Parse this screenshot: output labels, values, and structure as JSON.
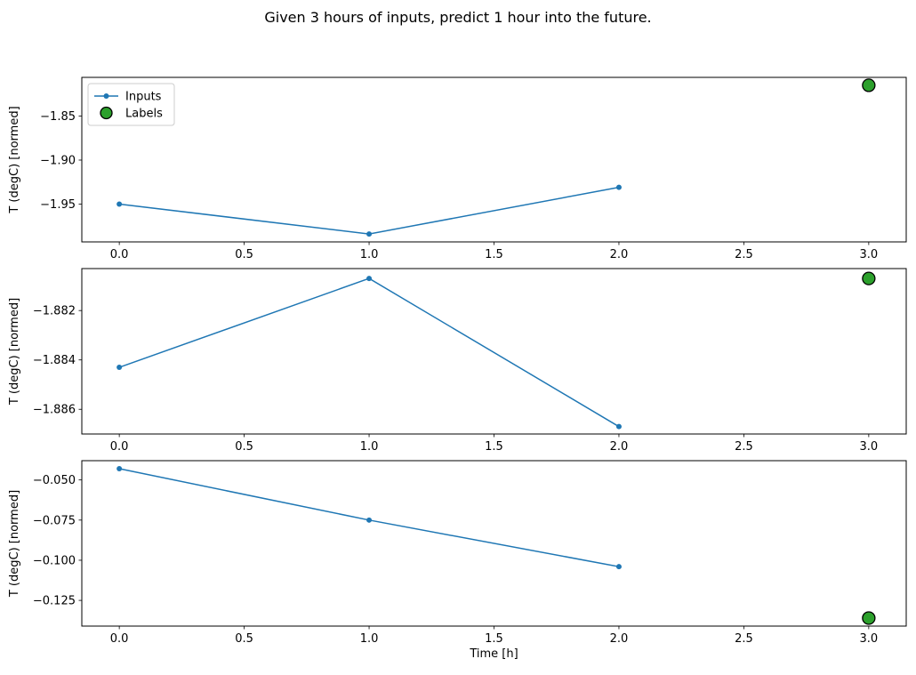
{
  "figure": {
    "title": "Given 3 hours of inputs, predict 1 hour into the future.",
    "background": "#ffffff",
    "text_color": "#000000"
  },
  "legend": {
    "entries": [
      "Inputs",
      "Labels"
    ],
    "position": "upper left",
    "border_color": "#cccccc"
  },
  "colors": {
    "inputs_line": "#1f77b4",
    "labels_fill": "#2ca02c",
    "labels_edge": "#000000",
    "axes": "#000000"
  },
  "chart_data": [
    {
      "type": "line",
      "title": "",
      "xlabel": "",
      "ylabel": "T (degC) [normed]",
      "xlim": [
        -0.15,
        3.15
      ],
      "ylim": [
        -1.993,
        -1.806
      ],
      "grid": false,
      "show_legend": true,
      "xticks": {
        "values": [
          0.0,
          0.5,
          1.0,
          1.5,
          2.0,
          2.5,
          3.0
        ],
        "labels": [
          "0.0",
          "0.5",
          "1.0",
          "1.5",
          "2.0",
          "2.5",
          "3.0"
        ]
      },
      "yticks": {
        "values": [
          -1.85,
          -1.9,
          -1.95
        ],
        "labels": [
          "−1.85",
          "−1.90",
          "−1.95"
        ]
      },
      "series": [
        {
          "name": "Inputs",
          "kind": "line",
          "marker": "dot",
          "color": "#1f77b4",
          "x": [
            0,
            1,
            2
          ],
          "y": [
            -1.95,
            -1.984,
            -1.931
          ]
        },
        {
          "name": "Labels",
          "kind": "scatter",
          "marker": "circle",
          "color": "#2ca02c",
          "edge": "#000000",
          "x": [
            3
          ],
          "y": [
            -1.815
          ]
        }
      ]
    },
    {
      "type": "line",
      "title": "",
      "xlabel": "",
      "ylabel": "T (degC) [normed]",
      "xlim": [
        -0.15,
        3.15
      ],
      "ylim": [
        -1.887,
        -1.8803
      ],
      "grid": false,
      "show_legend": false,
      "xticks": {
        "values": [
          0.0,
          0.5,
          1.0,
          1.5,
          2.0,
          2.5,
          3.0
        ],
        "labels": [
          "0.0",
          "0.5",
          "1.0",
          "1.5",
          "2.0",
          "2.5",
          "3.0"
        ]
      },
      "yticks": {
        "values": [
          -1.882,
          -1.884,
          -1.886
        ],
        "labels": [
          "−1.882",
          "−1.884",
          "−1.886"
        ]
      },
      "series": [
        {
          "name": "Inputs",
          "kind": "line",
          "marker": "dot",
          "color": "#1f77b4",
          "x": [
            0,
            1,
            2
          ],
          "y": [
            -1.8843,
            -1.8807,
            -1.8867
          ]
        },
        {
          "name": "Labels",
          "kind": "scatter",
          "marker": "circle",
          "color": "#2ca02c",
          "edge": "#000000",
          "x": [
            3
          ],
          "y": [
            -1.8807
          ]
        }
      ]
    },
    {
      "type": "line",
      "title": "",
      "xlabel": "Time [h]",
      "ylabel": "T (degC) [normed]",
      "xlim": [
        -0.15,
        3.15
      ],
      "ylim": [
        -0.141,
        -0.038
      ],
      "grid": false,
      "show_legend": false,
      "xticks": {
        "values": [
          0.0,
          0.5,
          1.0,
          1.5,
          2.0,
          2.5,
          3.0
        ],
        "labels": [
          "0.0",
          "0.5",
          "1.0",
          "1.5",
          "2.0",
          "2.5",
          "3.0"
        ]
      },
      "yticks": {
        "values": [
          -0.05,
          -0.075,
          -0.1,
          -0.125
        ],
        "labels": [
          "−0.050",
          "−0.075",
          "−0.100",
          "−0.125"
        ]
      },
      "series": [
        {
          "name": "Inputs",
          "kind": "line",
          "marker": "dot",
          "color": "#1f77b4",
          "x": [
            0,
            1,
            2
          ],
          "y": [
            -0.043,
            -0.075,
            -0.104
          ]
        },
        {
          "name": "Labels",
          "kind": "scatter",
          "marker": "circle",
          "color": "#2ca02c",
          "edge": "#000000",
          "x": [
            3
          ],
          "y": [
            -0.136
          ]
        }
      ]
    }
  ]
}
